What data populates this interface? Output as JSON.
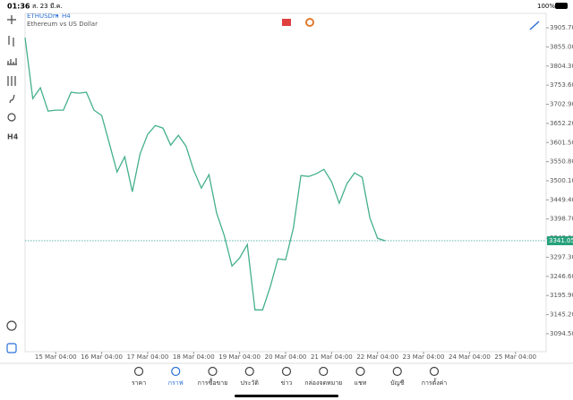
{
  "status_bar": {
    "time": "01:36",
    "date": "ส. 23 มี.ค.",
    "battery": "100%"
  },
  "chart_data": {
    "type": "line",
    "symbol": "ETHUSDm",
    "timeframe": "H4",
    "subtitle": "Ethereum vs US Dollar",
    "series": [
      {
        "name": "ETHUSDm",
        "color": "#45b08c",
        "values": [
          3879.6,
          3718.1,
          3746.6,
          3684.8,
          3687.2,
          3687.2,
          3734.7,
          3732.3,
          3734.7,
          3687.2,
          3673.0,
          3599.3,
          3523.3,
          3563.7,
          3471.1,
          3570.8,
          3623.1,
          3646.8,
          3639.7,
          3594.6,
          3620.7,
          3592.2,
          3528.1,
          3480.6,
          3516.2,
          3414.1,
          3354.7,
          3274.0,
          3295.3,
          3331.0,
          3157.6,
          3157.6,
          3219.4,
          3293.0,
          3290.6,
          3373.7,
          3513.8,
          3511.5,
          3518.6,
          3530.5,
          3497.2,
          3440.2,
          3492.5,
          3521.0,
          3509.1,
          3402.2,
          3347.6,
          3341.05
        ]
      }
    ],
    "xlim": [
      0,
      68
    ],
    "xticks": [
      {
        "value": 4,
        "label": "15 Mar 04:00"
      },
      {
        "value": 10,
        "label": "16 Mar 04:00"
      },
      {
        "value": 16,
        "label": "17 Mar 04:00"
      },
      {
        "value": 22,
        "label": "18 Mar 04:00"
      },
      {
        "value": 28,
        "label": "19 Mar 04:00"
      },
      {
        "value": 34,
        "label": "20 Mar 04:00"
      },
      {
        "value": 40,
        "label": "21 Mar 04:00"
      },
      {
        "value": 46,
        "label": "22 Mar 04:00"
      },
      {
        "value": 52,
        "label": "23 Mar 04:00"
      },
      {
        "value": 58,
        "label": "24 Mar 04:00"
      },
      {
        "value": 64,
        "label": "25 Mar 04:00"
      }
    ],
    "ylim": [
      3046.9,
      3943.8
    ],
    "yticks": [
      {
        "value": 3905.7,
        "label": "3905.70"
      },
      {
        "value": 3855,
        "label": "3855.00"
      },
      {
        "value": 3804.3,
        "label": "3804.30"
      },
      {
        "value": 3753.6,
        "label": "3753.60"
      },
      {
        "value": 3702.9,
        "label": "3702.90"
      },
      {
        "value": 3652.2,
        "label": "3652.20"
      },
      {
        "value": 3601.5,
        "label": "3601.50"
      },
      {
        "value": 3550.8,
        "label": "3550.80"
      },
      {
        "value": 3500.1,
        "label": "3500.10"
      },
      {
        "value": 3449.4,
        "label": "3449.40"
      },
      {
        "value": 3398.7,
        "label": "3398.70"
      },
      {
        "value": 3348,
        "label": "3348.00"
      },
      {
        "value": 3297.3,
        "label": "3297.30"
      },
      {
        "value": 3246.6,
        "label": "3246.60"
      },
      {
        "value": 3195.9,
        "label": "3195.90"
      },
      {
        "value": 3145.2,
        "label": "3145.20"
      },
      {
        "value": 3094.5,
        "label": "3094.50"
      }
    ]
  },
  "toolbar": [
    "ราคา",
    "กราฟ",
    "การซื้อขาย",
    "ประวัติ",
    "ข่าว",
    "กล่องจดหมาย",
    "แชท",
    "บัญชี",
    "การตั้งค่า"
  ]
}
